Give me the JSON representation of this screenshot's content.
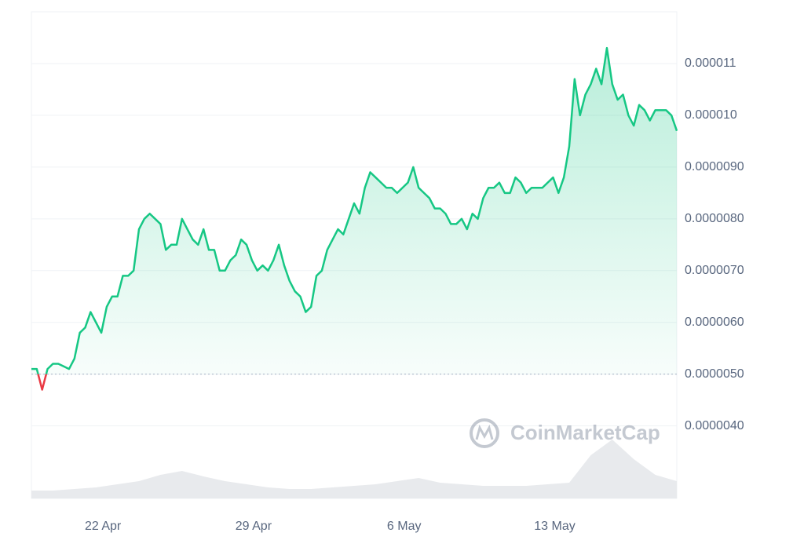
{
  "chart_data": {
    "type": "line",
    "watermark": "CoinMarketCap",
    "baseline": 5e-06,
    "xlim": [
      0,
      120
    ],
    "xticks": [
      {
        "value": 13.3,
        "label": "22 Apr"
      },
      {
        "value": 41.3,
        "label": "29 Apr"
      },
      {
        "value": 69.3,
        "label": "6 May"
      },
      {
        "value": 97.3,
        "label": "13 May"
      }
    ],
    "ylim": [
      2.6e-06,
      1.2e-05
    ],
    "yticks": [
      {
        "value": 4e-06,
        "label": "0.0000040"
      },
      {
        "value": 5e-06,
        "label": "0.0000050"
      },
      {
        "value": 6e-06,
        "label": "0.0000060"
      },
      {
        "value": 7e-06,
        "label": "0.0000070"
      },
      {
        "value": 8e-06,
        "label": "0.0000080"
      },
      {
        "value": 9e-06,
        "label": "0.0000090"
      },
      {
        "value": 1e-05,
        "label": "0.000010"
      },
      1.1e-05
    ],
    "grid": true,
    "series": [
      {
        "name": "Price",
        "color": "#16c784",
        "down_color": "#ea3943",
        "values": [
          5.1e-06,
          5.1e-06,
          4.7e-06,
          5.1e-06,
          5.2e-06,
          5.2e-06,
          5.15e-06,
          5.1e-06,
          5.3e-06,
          5.8e-06,
          5.9e-06,
          6.2e-06,
          6e-06,
          5.8e-06,
          6.3e-06,
          6.5e-06,
          6.5e-06,
          6.9e-06,
          6.9e-06,
          7e-06,
          7.8e-06,
          8e-06,
          8.1e-06,
          8e-06,
          7.9e-06,
          7.4e-06,
          7.5e-06,
          7.5e-06,
          8e-06,
          7.8e-06,
          7.6e-06,
          7.5e-06,
          7.8e-06,
          7.4e-06,
          7.4e-06,
          7e-06,
          7e-06,
          7.2e-06,
          7.3e-06,
          7.6e-06,
          7.5e-06,
          7.2e-06,
          7e-06,
          7.1e-06,
          7e-06,
          7.2e-06,
          7.5e-06,
          7.1e-06,
          6.8e-06,
          6.6e-06,
          6.5e-06,
          6.2e-06,
          6.3e-06,
          6.9e-06,
          7e-06,
          7.4e-06,
          7.6e-06,
          7.8e-06,
          7.7e-06,
          8e-06,
          8.3e-06,
          8.1e-06,
          8.6e-06,
          8.9e-06,
          8.8e-06,
          8.7e-06,
          8.6e-06,
          8.6e-06,
          8.5e-06,
          8.6e-06,
          8.7e-06,
          9e-06,
          8.6e-06,
          8.5e-06,
          8.4e-06,
          8.2e-06,
          8.2e-06,
          8.1e-06,
          7.9e-06,
          7.9e-06,
          8e-06,
          7.8e-06,
          8.1e-06,
          8e-06,
          8.4e-06,
          8.6e-06,
          8.6e-06,
          8.7e-06,
          8.5e-06,
          8.5e-06,
          8.8e-06,
          8.7e-06,
          8.5e-06,
          8.6e-06,
          8.6e-06,
          8.6e-06,
          8.7e-06,
          8.8e-06,
          8.5e-06,
          8.8e-06,
          9.4e-06,
          1.07e-05,
          1e-05,
          1.04e-05,
          1.06e-05,
          1.09e-05,
          1.06e-05,
          1.13e-05,
          1.06e-05,
          1.03e-05,
          1.04e-05,
          1e-05,
          9.8e-06,
          1.02e-05,
          1.01e-05,
          9.9e-06,
          1.01e-05,
          1.01e-05,
          1.01e-05,
          1e-05,
          9.7e-06
        ]
      }
    ],
    "volume": {
      "color": "#e8eaed",
      "values": [
        10,
        10,
        12,
        14,
        18,
        22,
        30,
        35,
        28,
        22,
        18,
        14,
        12,
        12,
        14,
        16,
        18,
        22,
        26,
        20,
        18,
        16,
        16,
        16,
        18,
        20,
        55,
        75,
        50,
        30,
        22
      ]
    }
  }
}
